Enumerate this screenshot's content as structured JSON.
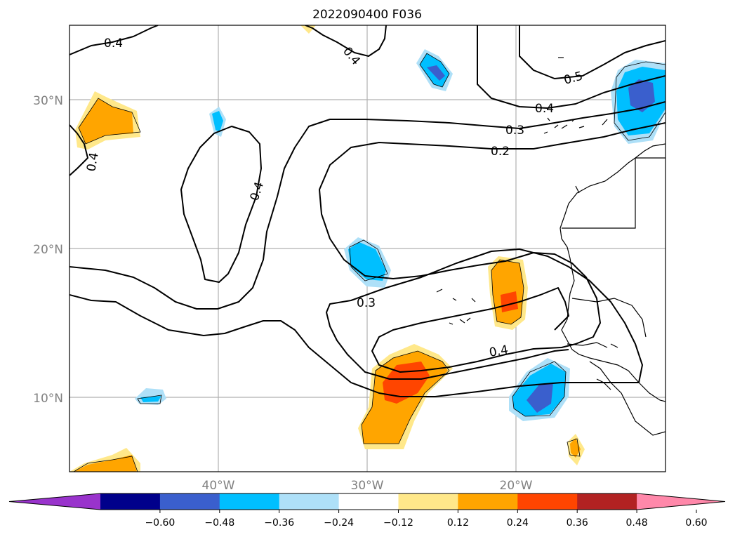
{
  "title": "2022090400 F036",
  "map": {
    "lon_range": [
      -49,
      -9
    ],
    "lat_range": [
      5,
      35
    ],
    "lon_labels": [
      "40°W",
      "30°W",
      "20°W"
    ],
    "lat_labels": [
      "30°N",
      "20°N",
      "10°N"
    ],
    "contour_labels": [
      "0.4",
      "0.4",
      "0.4",
      "0.4",
      "0.5",
      "0.4",
      "0.3",
      "0.2",
      "0.3",
      "0.4"
    ]
  },
  "colorbar": {
    "ticks": [
      "−0.60",
      "−0.48",
      "−0.36",
      "−0.24",
      "−0.12",
      "0.12",
      "0.24",
      "0.36",
      "0.48",
      "0.60"
    ],
    "colors": [
      "#9933cc",
      "#00008b",
      "#3a5fcd",
      "#00bfff",
      "#aee0f8",
      "#ffffff",
      "#ffe88a",
      "#ffa500",
      "#ff4500",
      "#b22222",
      "#ff88aa"
    ]
  }
}
